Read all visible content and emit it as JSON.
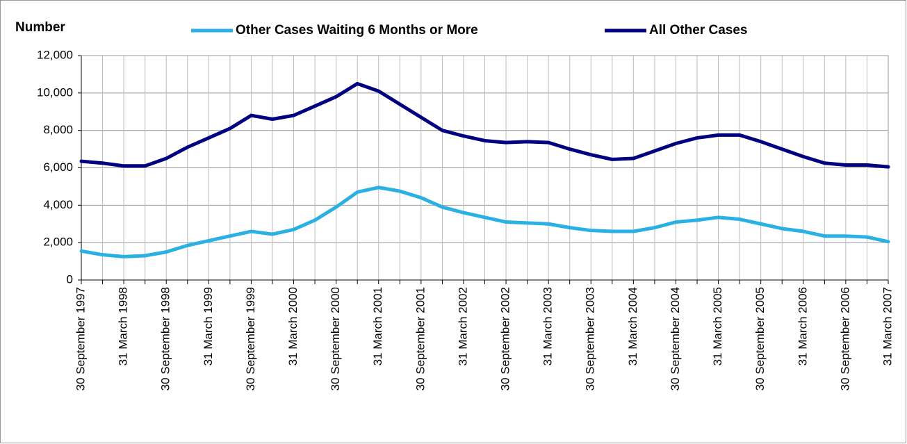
{
  "chart_data": {
    "type": "line",
    "y_label": "Number",
    "categories": [
      "30 September 1997",
      null,
      "31 March 1998",
      null,
      "30 September 1998",
      null,
      "31 March 1999",
      null,
      "30 September 1999",
      null,
      "31 March 2000",
      null,
      "30 September 2000",
      null,
      "31 March 2001",
      null,
      "30 September 2001",
      null,
      "31 March 2002",
      null,
      "30 September 2002",
      null,
      "31 March 2003",
      null,
      "30 September 2003",
      null,
      "31 March 2004",
      null,
      "30 September 2004",
      null,
      "31 March 2005",
      null,
      "30 September 2005",
      null,
      "31 March 2006",
      null,
      "30 September 2006",
      null,
      "31 March 2007"
    ],
    "series": [
      {
        "name": "Other Cases Waiting 6 Months or More",
        "color": "#2bb0e3",
        "values": [
          1550,
          1350,
          1250,
          1300,
          1500,
          1850,
          2100,
          2350,
          2600,
          2450,
          2700,
          3200,
          3900,
          4700,
          4950,
          4750,
          4400,
          3900,
          3600,
          3350,
          3100,
          3050,
          3000,
          2800,
          2650,
          2600,
          2600,
          2800,
          3100,
          3200,
          3350,
          3250,
          3000,
          2750,
          2600,
          2350,
          2350,
          2300,
          2050
        ]
      },
      {
        "name": "All Other Cases",
        "color": "#000080",
        "values": [
          6350,
          6250,
          6100,
          6100,
          6500,
          7100,
          7600,
          8100,
          8800,
          8600,
          8800,
          9300,
          9800,
          10500,
          10100,
          9400,
          8700,
          8000,
          7700,
          7450,
          7350,
          7400,
          7350,
          7000,
          6700,
          6450,
          6500,
          6900,
          7300,
          7600,
          7750,
          7750,
          7400,
          7000,
          6600,
          6250,
          6150,
          6150,
          6050
        ]
      }
    ],
    "ylim": [
      0,
      12000
    ],
    "yticks": [
      0,
      {
        "value": 2000,
        "label": "2,000"
      },
      {
        "value": 4000,
        "label": "4,000"
      },
      {
        "value": 6000,
        "label": "6,000"
      },
      {
        "value": 8000,
        "label": "8,000"
      },
      {
        "value": 10000,
        "label": "10,000"
      },
      {
        "value": 12000,
        "label": "12,000"
      }
    ],
    "grid": true,
    "legend": "top"
  }
}
